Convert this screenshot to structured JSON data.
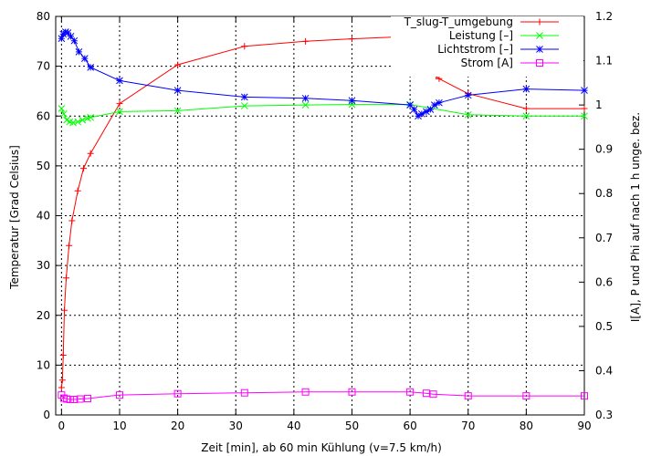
{
  "chart_data": {
    "type": "line",
    "title": "",
    "xlabel": "Zeit [min], ab 60 min Kühlung (v=7.5 km/h)",
    "ylabel": "Temperatur [Grad Celsius]",
    "y2label": "I[A], P und Phi auf nach 1 h unge. bez.",
    "xlim": [
      -1,
      90
    ],
    "ylim": [
      0,
      80
    ],
    "y2lim": [
      0.3,
      1.2
    ],
    "xticks": [
      "0",
      "10",
      "20",
      "30",
      "40",
      "50",
      "60",
      "70",
      "80",
      "90"
    ],
    "yticks": [
      "0",
      "10",
      "20",
      "30",
      "40",
      "50",
      "60",
      "70",
      "80"
    ],
    "y2ticks": [
      "0.3",
      "0.4",
      "0.5",
      "0.6",
      "0.7",
      "0.8",
      "0.9",
      "1",
      "1.1",
      "1.2"
    ],
    "grid": true,
    "legend_position": "top-right",
    "series": [
      {
        "name": "T_slug-T_umgebung",
        "axis": "left",
        "color": "#ff0000",
        "marker": "plus",
        "points": [
          [
            0,
            5.5
          ],
          [
            0.15,
            7
          ],
          [
            0.3,
            12
          ],
          [
            0.5,
            21
          ],
          [
            0.8,
            27.5
          ],
          [
            1.3,
            34
          ],
          [
            1.8,
            39
          ],
          [
            2.8,
            45
          ],
          [
            3.8,
            49.5
          ],
          [
            5,
            52.5
          ],
          [
            10,
            62.5
          ],
          [
            20,
            70.3
          ],
          [
            31.5,
            74
          ],
          [
            42,
            75
          ],
          [
            50,
            75.5
          ],
          [
            60,
            76
          ],
          [
            60.8,
            75
          ],
          [
            61.5,
            73.5
          ],
          [
            62.2,
            72
          ],
          [
            63,
            70.5
          ],
          [
            63.7,
            69
          ],
          [
            64.5,
            68
          ],
          [
            65,
            67.5
          ],
          [
            70,
            64.5
          ],
          [
            80,
            61.5
          ],
          [
            90,
            61.5
          ]
        ]
      },
      {
        "name": "Leistung [–]",
        "axis": "right",
        "color": "#00ff00",
        "marker": "x",
        "points": [
          [
            0,
            0.992
          ],
          [
            0.4,
            0.98
          ],
          [
            0.9,
            0.966
          ],
          [
            1.4,
            0.962
          ],
          [
            2,
            0.96
          ],
          [
            2.8,
            0.962
          ],
          [
            3.6,
            0.966
          ],
          [
            4.5,
            0.97
          ],
          [
            5,
            0.972
          ],
          [
            10,
            0.985
          ],
          [
            20,
            0.987
          ],
          [
            31.5,
            0.998
          ],
          [
            42,
            1.0
          ],
          [
            50,
            1.001
          ],
          [
            60,
            1.001
          ],
          [
            70,
            0.978
          ],
          [
            80,
            0.975
          ],
          [
            90,
            0.975
          ]
        ]
      },
      {
        "name": "Lichtstrom [–]",
        "axis": "right",
        "color": "#0000ff",
        "marker": "star",
        "points": [
          [
            0,
            1.15
          ],
          [
            0.3,
            1.16
          ],
          [
            0.7,
            1.165
          ],
          [
            1.1,
            1.163
          ],
          [
            1.6,
            1.155
          ],
          [
            2.2,
            1.145
          ],
          [
            3,
            1.12
          ],
          [
            4,
            1.105
          ],
          [
            5,
            1.085
          ],
          [
            10,
            1.055
          ],
          [
            20,
            1.033
          ],
          [
            31.5,
            1.018
          ],
          [
            42,
            1.015
          ],
          [
            50,
            1.01
          ],
          [
            60,
            1.0
          ],
          [
            60.7,
            0.99
          ],
          [
            61.4,
            0.975
          ],
          [
            62,
            0.98
          ],
          [
            62.8,
            0.985
          ],
          [
            63.5,
            0.99
          ],
          [
            64.2,
            1.0
          ],
          [
            65,
            1.005
          ],
          [
            70,
            1.022
          ],
          [
            80,
            1.036
          ],
          [
            90,
            1.033
          ]
        ]
      },
      {
        "name": "Strom [A]",
        "axis": "right",
        "color": "#ff00ff",
        "marker": "square",
        "points": [
          [
            0,
            0.345
          ],
          [
            0.4,
            0.338
          ],
          [
            0.9,
            0.336
          ],
          [
            1.5,
            0.335
          ],
          [
            2.2,
            0.335
          ],
          [
            3.2,
            0.336
          ],
          [
            4.5,
            0.337
          ],
          [
            10,
            0.345
          ],
          [
            20,
            0.348
          ],
          [
            31.5,
            0.35
          ],
          [
            42,
            0.352
          ],
          [
            50,
            0.352
          ],
          [
            60,
            0.352
          ],
          [
            62.8,
            0.349
          ],
          [
            64,
            0.347
          ],
          [
            70,
            0.343
          ],
          [
            80,
            0.343
          ],
          [
            90,
            0.343
          ]
        ]
      }
    ]
  }
}
